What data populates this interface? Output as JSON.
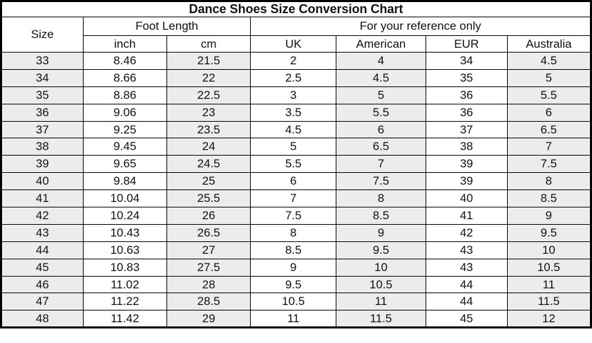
{
  "chart_data": {
    "type": "table",
    "title": "Dance Shoes Size Conversion Chart",
    "header_groups": [
      {
        "label": "Size",
        "colspan": 1,
        "rowspan": 2
      },
      {
        "label": "Foot Length",
        "colspan": 2,
        "rowspan": 1
      },
      {
        "label": "For your reference only",
        "colspan": 4,
        "rowspan": 1
      }
    ],
    "columns": [
      "Size",
      "inch",
      "cm",
      "UK",
      "American",
      "EUR",
      "Australia"
    ],
    "column_keys": [
      "size",
      "inch",
      "cm",
      "uk",
      "american",
      "eur",
      "australia"
    ],
    "rows": [
      [
        33,
        8.46,
        21.5,
        2,
        4,
        34,
        4.5
      ],
      [
        34,
        8.66,
        22,
        2.5,
        4.5,
        35,
        5
      ],
      [
        35,
        8.86,
        22.5,
        3,
        5,
        36,
        5.5
      ],
      [
        36,
        9.06,
        23,
        3.5,
        5.5,
        36,
        6
      ],
      [
        37,
        9.25,
        23.5,
        4.5,
        6,
        37,
        6.5
      ],
      [
        38,
        9.45,
        24,
        5,
        6.5,
        38,
        7
      ],
      [
        39,
        9.65,
        24.5,
        5.5,
        7,
        39,
        7.5
      ],
      [
        40,
        9.84,
        25,
        6,
        7.5,
        39,
        8
      ],
      [
        41,
        10.04,
        25.5,
        7,
        8,
        40,
        8.5
      ],
      [
        42,
        10.24,
        26,
        7.5,
        8.5,
        41,
        9
      ],
      [
        43,
        10.43,
        26.5,
        8,
        9,
        42,
        9.5
      ],
      [
        44,
        10.63,
        27,
        8.5,
        9.5,
        43,
        10
      ],
      [
        45,
        10.83,
        27.5,
        9,
        10,
        43,
        10.5
      ],
      [
        46,
        11.02,
        28,
        9.5,
        10.5,
        44,
        11
      ],
      [
        47,
        11.22,
        28.5,
        10.5,
        11,
        44,
        11.5
      ],
      [
        48,
        11.42,
        29,
        11,
        11.5,
        45,
        12
      ]
    ],
    "layout": {
      "shaded_column_indexes": [
        0,
        2,
        4,
        6
      ],
      "grid": true,
      "legend": false
    }
  },
  "colors": {
    "shaded_cell": "#ececec",
    "table_border": "#000000",
    "background": "#ffffff",
    "text": "#111111"
  }
}
